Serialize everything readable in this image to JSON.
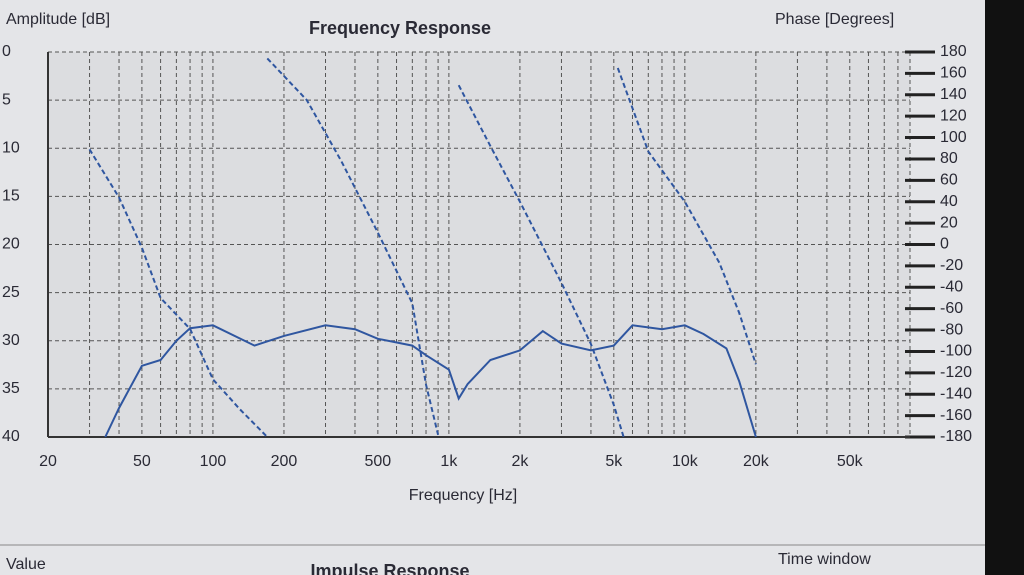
{
  "chart_data": {
    "type": "line",
    "title": "Frequency Response",
    "ylabel": "Amplitude [dB]",
    "y2label": "Phase [Degrees]",
    "xlabel": "Frequency [Hz]",
    "xscale": "log",
    "xlim": [
      20,
      90000
    ],
    "ylim": [
      40,
      0
    ],
    "y2lim": [
      -180,
      180
    ],
    "xticks": [
      20,
      50,
      100,
      200,
      500,
      {
        "value": 1000,
        "label": "1k"
      },
      {
        "value": 2000,
        "label": "2k"
      },
      {
        "value": 5000,
        "label": "5k"
      },
      {
        "value": 10000,
        "label": "10k"
      },
      {
        "value": 20000,
        "label": "20k"
      },
      {
        "value": 50000,
        "label": "50k"
      }
    ],
    "xminorticks": [
      30,
      40,
      60,
      70,
      80,
      90,
      300,
      400,
      600,
      700,
      800,
      900,
      3000,
      4000,
      6000,
      7000,
      8000,
      9000,
      30000,
      40000,
      60000,
      70000,
      80000,
      90000
    ],
    "yticks": [
      0,
      5,
      10,
      15,
      20,
      25,
      30,
      35,
      40
    ],
    "y2ticks": [
      180,
      160,
      140,
      120,
      100,
      80,
      60,
      40,
      20,
      0,
      -20,
      -40,
      -60,
      -80,
      -100,
      -120,
      -140,
      -160,
      -180
    ],
    "grid": true,
    "series": [
      {
        "color": "#2f56a0",
        "dashed": false,
        "x": [
          35,
          40,
          50,
          60,
          70,
          80,
          100,
          150,
          200,
          300,
          400,
          500,
          700,
          800,
          1000,
          1100,
          1200,
          1500,
          2000,
          2500,
          3000,
          4000,
          5000,
          6000,
          8000,
          10000,
          12000,
          15000,
          17000,
          20000
        ],
        "values": [
          40,
          37,
          32.6,
          32,
          30,
          28.7,
          28.4,
          30.5,
          29.5,
          28.4,
          28.8,
          29.8,
          30.5,
          31.5,
          33,
          36,
          34.5,
          32,
          31,
          29,
          30.3,
          31,
          30.5,
          28.4,
          28.8,
          28.4,
          29.3,
          30.8,
          34.2,
          40
        ]
      },
      {
        "color": "#2f56a0",
        "dashed": true,
        "axis": "y2",
        "x": [
          30,
          40,
          50,
          60,
          80,
          100,
          130,
          170
        ],
        "values": [
          89,
          44,
          -3,
          -50,
          -79,
          -126,
          -154,
          -180
        ]
      },
      {
        "color": "#2f56a0",
        "dashed": true,
        "axis": "y2",
        "x": [
          170,
          250,
          350,
          500,
          700,
          800,
          900
        ],
        "values": [
          174,
          135,
          78,
          11,
          -55,
          -131,
          -178
        ]
      },
      {
        "color": "#2f56a0",
        "dashed": true,
        "axis": "y2",
        "x": [
          1100,
          1500,
          2000,
          3000,
          4000,
          5000,
          5500
        ],
        "values": [
          149,
          92,
          40,
          -36,
          -93,
          -150,
          -180
        ]
      },
      {
        "color": "#2f56a0",
        "dashed": true,
        "axis": "y2",
        "x": [
          5200,
          7000,
          10000,
          14000,
          17000,
          20000
        ],
        "values": [
          165,
          87,
          40,
          -17,
          -64,
          -112
        ]
      }
    ]
  },
  "lower_panel": {
    "left_label": "Value",
    "title": "Impulse Response",
    "right_label": "Time window"
  }
}
